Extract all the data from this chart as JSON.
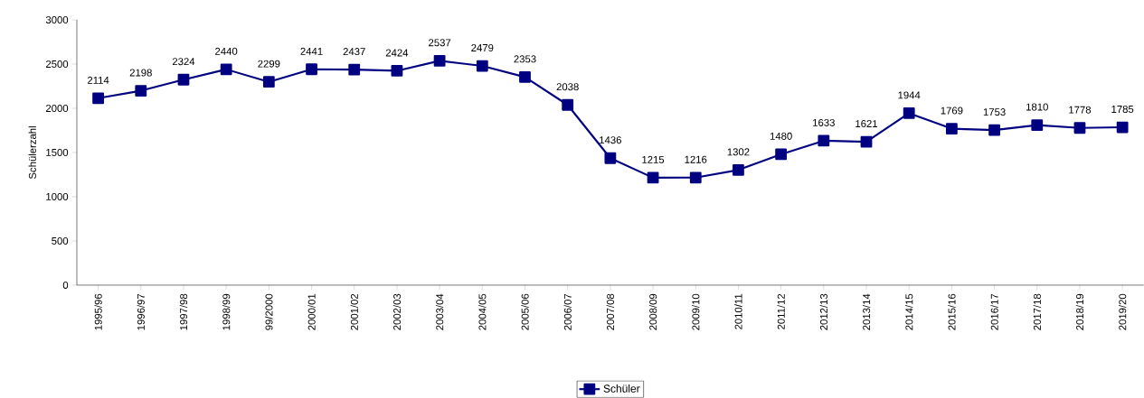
{
  "chart_data": {
    "type": "line",
    "ylabel": "Schülerzahl",
    "categories": [
      "1995/96",
      "1996/97",
      "1997/98",
      "1998/99",
      "99/2000",
      "2000/01",
      "2001/02",
      "2002/03",
      "2003/04",
      "2004/05",
      "2005/06",
      "2006/07",
      "2007/08",
      "2008/09",
      "2009/10",
      "2010/11",
      "2011/12",
      "2012/13",
      "2013/14",
      "2014/15",
      "2015/16",
      "2016/17",
      "2017/18",
      "2018/19",
      "2019/20"
    ],
    "series": [
      {
        "name": "Schüler",
        "color": "#000080",
        "values": [
          2114,
          2198,
          2324,
          2440,
          2299,
          2441,
          2437,
          2424,
          2537,
          2479,
          2353,
          2038,
          1436,
          1215,
          1216,
          1302,
          1480,
          1633,
          1621,
          1944,
          1769,
          1753,
          1810,
          1778,
          1785
        ]
      }
    ],
    "ylim": [
      0,
      3000
    ],
    "yticks": [
      0,
      500,
      1000,
      1500,
      2000,
      2500,
      3000
    ],
    "data_labels": true,
    "grid": false,
    "legend": "bottom",
    "marker": "square",
    "line_style": "solid"
  }
}
